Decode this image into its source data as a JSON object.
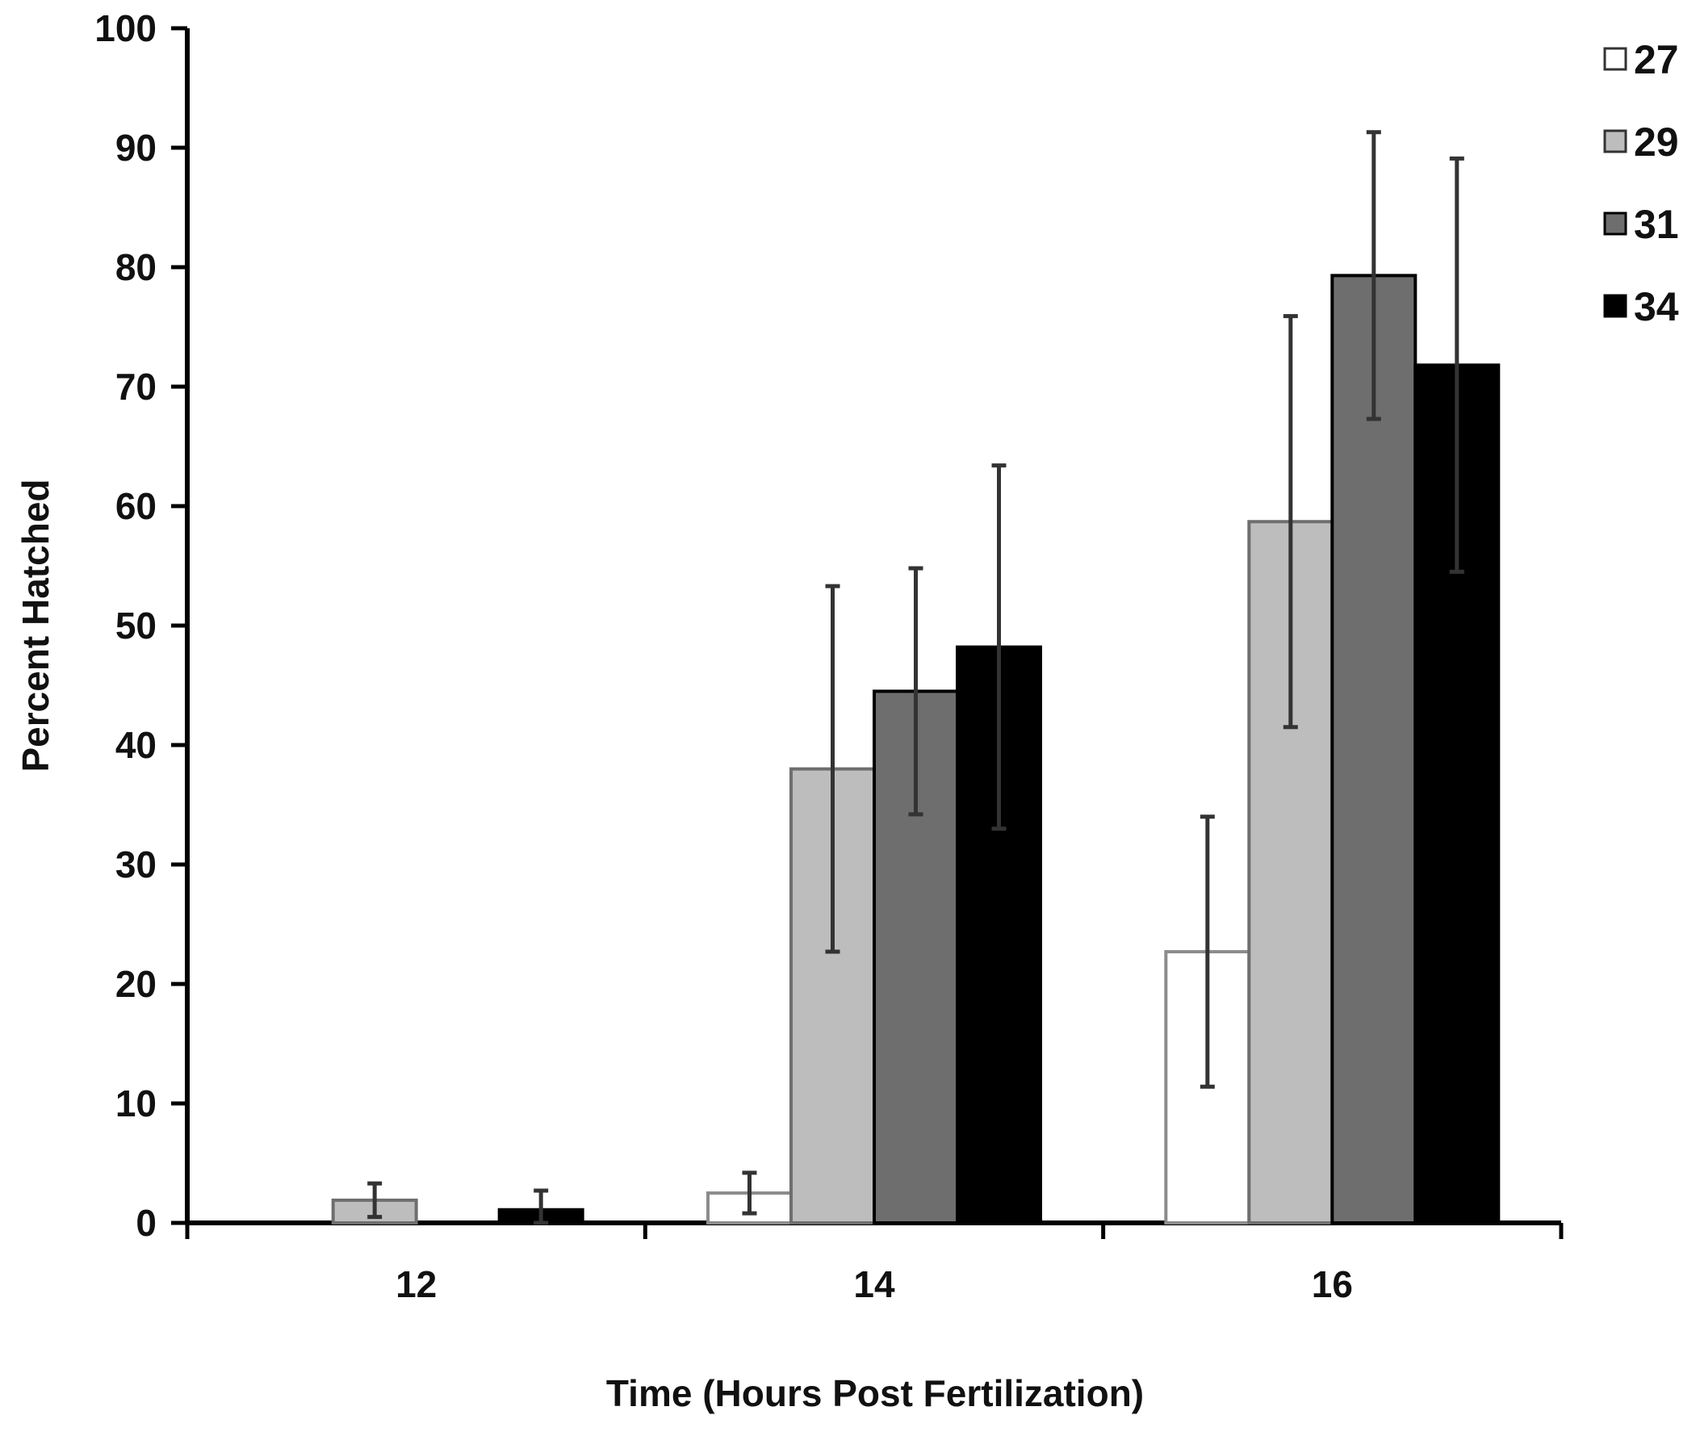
{
  "chart_data": {
    "type": "bar",
    "title": "",
    "xlabel": "Time (Hours Post Fertilization)",
    "ylabel": "Percent Hatched",
    "ylim": [
      0,
      100
    ],
    "yticks": [
      "0",
      "10",
      "20",
      "30",
      "40",
      "50",
      "60",
      "70",
      "80",
      "90",
      "100"
    ],
    "categories": [
      "12",
      "14",
      "16"
    ],
    "legend_position": "top-right",
    "grid": false,
    "series": [
      {
        "name": "27",
        "fill": "#ffffff",
        "stroke": "#8c8c8c",
        "values": [
          0,
          2.5,
          22.7
        ],
        "errors": [
          null,
          1.7,
          11.3
        ]
      },
      {
        "name": "29",
        "fill": "#bdbdbd",
        "stroke": "#6e6e6e",
        "values": [
          1.9,
          38.0,
          58.7
        ],
        "errors": [
          1.4,
          15.3,
          17.2
        ]
      },
      {
        "name": "31",
        "fill": "#6e6e6e",
        "stroke": "#000000",
        "values": [
          0,
          44.5,
          79.3
        ],
        "errors": [
          null,
          10.3,
          12.0
        ]
      },
      {
        "name": "34",
        "fill": "#000000",
        "stroke": "#000000",
        "values": [
          1.1,
          48.2,
          71.8
        ],
        "errors": [
          1.6,
          15.2,
          17.3
        ]
      }
    ]
  }
}
